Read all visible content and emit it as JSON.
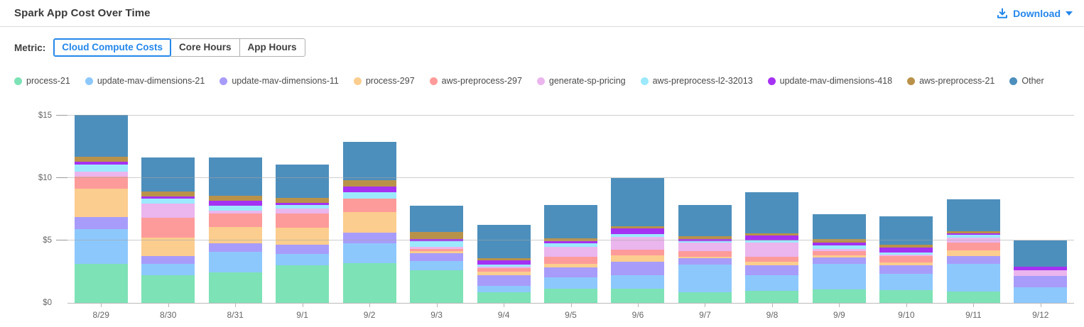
{
  "header": {
    "title": "Spark App Cost Over Time",
    "download_label": "Download"
  },
  "colors": {
    "accent_blue": "#2487ea",
    "grid": "#a5a5a5",
    "axis_text": "#666666"
  },
  "metric": {
    "label": "Metric:",
    "options": [
      {
        "label": "Cloud Compute Costs",
        "selected": true
      },
      {
        "label": "Core Hours",
        "selected": false
      },
      {
        "label": "App Hours",
        "selected": false
      }
    ]
  },
  "chart_data": {
    "type": "bar",
    "stacked": true,
    "title": "Spark App Cost Over Time",
    "xlabel": "",
    "ylabel": "",
    "ylim": [
      0,
      15
    ],
    "yticks": [
      {
        "value": 0,
        "label": "$0"
      },
      {
        "value": 5,
        "label": "$5"
      },
      {
        "value": 10,
        "label": "$10"
      },
      {
        "value": 15,
        "label": "$15"
      }
    ],
    "grid": true,
    "legend_position": "top",
    "categories": [
      "8/29",
      "8/30",
      "8/31",
      "9/1",
      "9/2",
      "9/3",
      "9/4",
      "9/5",
      "9/6",
      "9/7",
      "9/8",
      "9/9",
      "9/10",
      "9/11",
      "9/12"
    ],
    "series": [
      {
        "name": "process-21",
        "color": "#7de2b6",
        "values": [
          3.1,
          2.23,
          2.42,
          2.99,
          3.18,
          2.61,
          0.86,
          1.12,
          1.12,
          0.86,
          0.95,
          1.09,
          1.05,
          0.9,
          0.0
        ]
      },
      {
        "name": "update-mav-dimensions-21",
        "color": "#8dc8fc",
        "values": [
          2.8,
          0.87,
          1.66,
          0.91,
          1.6,
          0.76,
          0.53,
          0.92,
          1.1,
          2.19,
          1.24,
          2.05,
          1.3,
          2.25,
          1.24
        ]
      },
      {
        "name": "update-mav-dimensions-11",
        "color": "#a89cfa",
        "values": [
          1.0,
          0.67,
          0.72,
          0.77,
          0.84,
          0.63,
          0.8,
          0.78,
          1.07,
          0.51,
          0.84,
          0.48,
          0.65,
          0.58,
          0.91
        ]
      },
      {
        "name": "process-297",
        "color": "#fbcd8e",
        "values": [
          2.24,
          1.47,
          1.3,
          1.37,
          1.68,
          0.17,
          0.34,
          0.28,
          0.51,
          0.15,
          0.27,
          0.19,
          0.25,
          0.47,
          0.0
        ]
      },
      {
        "name": "aws-preprocess-297",
        "color": "#fd9b9a",
        "values": [
          0.96,
          1.56,
          1.04,
          1.1,
          1.07,
          0.15,
          0.23,
          0.58,
          0.48,
          0.42,
          0.38,
          0.32,
          0.5,
          0.63,
          0.0
        ]
      },
      {
        "name": "generate-sp-pricing",
        "color": "#ebb5ee",
        "values": [
          0.43,
          1.14,
          0.27,
          0.4,
          0.0,
          0.16,
          0.15,
          0.83,
          0.99,
          0.69,
          1.14,
          0.19,
          0.1,
          0.42,
          0.46
        ]
      },
      {
        "name": "aws-preprocess-l2-32013",
        "color": "#9ce9fd",
        "values": [
          0.57,
          0.42,
          0.4,
          0.33,
          0.48,
          0.45,
          0.16,
          0.25,
          0.22,
          0.13,
          0.19,
          0.27,
          0.19,
          0.19,
          0.0
        ]
      },
      {
        "name": "update-mav-dimensions-418",
        "color": "#a531f2",
        "values": [
          0.23,
          0.15,
          0.4,
          0.15,
          0.47,
          0.19,
          0.34,
          0.21,
          0.46,
          0.19,
          0.38,
          0.27,
          0.38,
          0.15,
          0.3
        ]
      },
      {
        "name": "aws-preprocess-21",
        "color": "#b9924a",
        "values": [
          0.35,
          0.44,
          0.38,
          0.38,
          0.5,
          0.59,
          0.15,
          0.23,
          0.19,
          0.19,
          0.19,
          0.23,
          0.23,
          0.17,
          0.0
        ]
      },
      {
        "name": "Other",
        "color": "#4d8fbc",
        "values": [
          3.4,
          2.73,
          3.09,
          2.67,
          3.07,
          2.1,
          2.71,
          2.67,
          3.89,
          2.54,
          3.3,
          2.03,
          2.28,
          2.56,
          2.1
        ]
      }
    ]
  }
}
